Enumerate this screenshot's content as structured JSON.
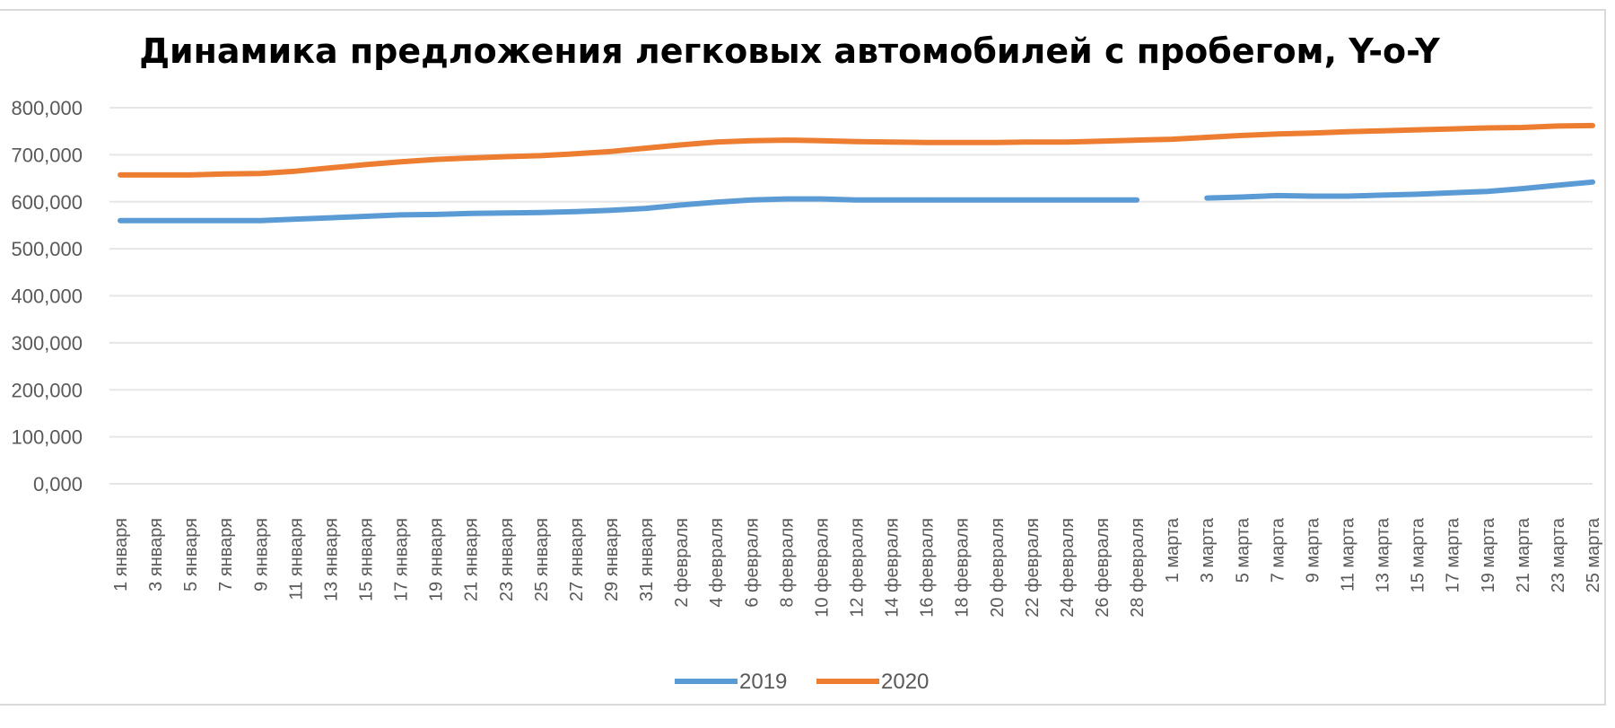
{
  "chart_data": {
    "type": "line",
    "title": "Динамика предложения легковых автомобилей с пробегом, Y-o-Y",
    "xlabel": "",
    "ylabel": "",
    "ylim": [
      0,
      800000
    ],
    "y_ticks": [
      "0,000",
      "100,000",
      "200,000",
      "300,000",
      "400,000",
      "500,000",
      "600,000",
      "700,000",
      "800,000"
    ],
    "grid": true,
    "legend_position": "bottom",
    "x_labels": [
      "1 января",
      "3 января",
      "5 января",
      "7 января",
      "9 января",
      "11 января",
      "13 января",
      "15 января",
      "17 января",
      "19 января",
      "21 января",
      "23 января",
      "25 января",
      "27 января",
      "29 января",
      "31 января",
      "2 февраля",
      "4 февраля",
      "6 февраля",
      "8 февраля",
      "10 февраля",
      "12 февраля",
      "14 февраля",
      "16 февраля",
      "18 февраля",
      "20 февраля",
      "22 февраля",
      "24 февраля",
      "26 февраля",
      "28 февраля",
      "1 марта",
      "3 марта",
      "5 марта",
      "7 марта",
      "9 марта",
      "11 марта",
      "13 марта",
      "15 марта",
      "17 марта",
      "19 марта",
      "21 марта",
      "23 марта",
      "25 марта"
    ],
    "series": [
      {
        "name": "2019",
        "color": "#5b9bd5",
        "values": [
          560000,
          560000,
          560000,
          560000,
          560000,
          563000,
          566000,
          569000,
          572000,
          573000,
          575000,
          576000,
          577000,
          579000,
          582000,
          586000,
          593000,
          599000,
          604000,
          606000,
          606000,
          604000,
          604000,
          604000,
          604000,
          604000,
          604000,
          604000,
          604000,
          604000,
          null,
          608000,
          610000,
          613000,
          612000,
          612000,
          614000,
          616000,
          619000,
          622000,
          628000,
          635000,
          642000
        ]
      },
      {
        "name": "2020",
        "color": "#ed7d31",
        "values": [
          657000,
          657000,
          657000,
          659000,
          660000,
          665000,
          672000,
          679000,
          685000,
          690000,
          693000,
          696000,
          698000,
          702000,
          707000,
          714000,
          721000,
          727000,
          730000,
          731000,
          730000,
          728000,
          727000,
          726000,
          726000,
          726000,
          727000,
          727000,
          729000,
          731000,
          733000,
          737000,
          741000,
          744000,
          746000,
          749000,
          751000,
          753000,
          755000,
          757000,
          758000,
          761000,
          762000
        ]
      }
    ]
  }
}
